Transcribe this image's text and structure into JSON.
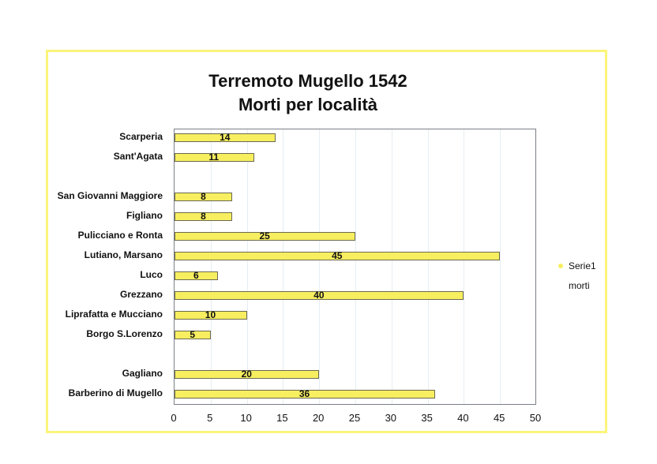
{
  "chart_data": {
    "type": "bar",
    "orientation": "horizontal",
    "title": "Terremoto Mugello 1542\nMorti per località",
    "title_lines": [
      "Terremoto Mugello 1542",
      "Morti per località"
    ],
    "xlabel": "",
    "ylabel": "",
    "xlim": [
      0,
      50
    ],
    "xticks": [
      0,
      5,
      10,
      15,
      20,
      25,
      30,
      35,
      40,
      45,
      50
    ],
    "grid": true,
    "legend_position": "right",
    "legend": [
      "Serie1",
      "morti"
    ],
    "categories": [
      "Scarperia",
      "Sant'Agata",
      "",
      "San Giovanni Maggiore",
      "Figliano",
      "Pulicciano e Ronta",
      "Lutiano, Marsano",
      "Luco",
      "Grezzano",
      "Liprafatta e Mucciano",
      "Borgo S.Lorenzo",
      "",
      "Gagliano",
      "Barberino di Mugello"
    ],
    "series": [
      {
        "name": "Serie1",
        "color": "#f7ee60",
        "values": [
          14,
          11,
          null,
          8,
          8,
          25,
          45,
          6,
          40,
          10,
          5,
          null,
          20,
          36
        ]
      }
    ]
  },
  "title": {
    "line1": "Terremoto Mugello 1542",
    "line2": "Morti per località"
  },
  "legend": {
    "series_label": "Serie1",
    "subtitle": "morti"
  },
  "colors": {
    "bar": "#f7ee60",
    "frame": "#fbf47a",
    "axis": "#7a7f86"
  }
}
